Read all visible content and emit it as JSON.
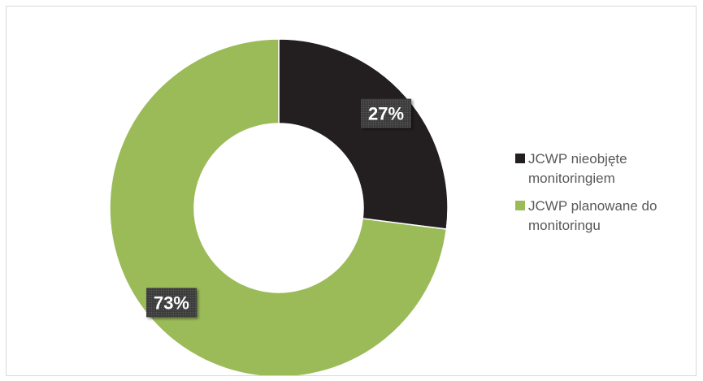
{
  "chart_data": {
    "type": "pie",
    "variant": "donut",
    "title": "",
    "categories": [
      "JCWP nieobjęte monitoringiem",
      "JCWP planowane do monitoringu"
    ],
    "values": [
      27,
      73
    ],
    "data_labels": [
      "27%",
      "73%"
    ],
    "colors": [
      "#231f20",
      "#9bbb59"
    ],
    "legend_position": "right"
  }
}
